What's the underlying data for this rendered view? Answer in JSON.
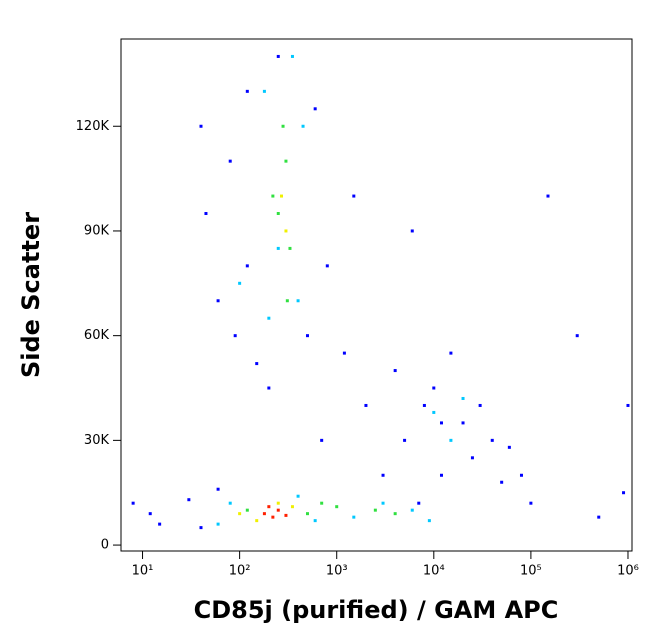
{
  "chart_data": {
    "type": "scatter",
    "x_label": "CD85j (purified) / GAM APC",
    "y_label": "Side Scatter",
    "x_log": true,
    "xlim": [
      6,
      1100000
    ],
    "ylim": [
      -1700,
      145000
    ],
    "xticks": [
      {
        "value": 10,
        "label": "10¹"
      },
      {
        "value": 100,
        "label": "10²"
      },
      {
        "value": 1000,
        "label": "10³"
      },
      {
        "value": 10000,
        "label": "10⁴"
      },
      {
        "value": 100000,
        "label": "10⁵"
      },
      {
        "value": 1000000,
        "label": "10⁶"
      }
    ],
    "yticks": [
      0,
      {
        "value": 30000,
        "label": "30K"
      },
      {
        "value": 60000,
        "label": "60K"
      },
      {
        "value": 90000,
        "label": "90K"
      },
      {
        "value": 120000,
        "label": "120K"
      }
    ],
    "series": [
      {
        "color": "#0000ff",
        "x": [
          8,
          12,
          15,
          30,
          40,
          60,
          45,
          60,
          80,
          90,
          120,
          150,
          200,
          250,
          500,
          600,
          800,
          1500,
          2000,
          3000,
          4000,
          5000,
          6000,
          8000,
          10000,
          12000,
          15000,
          20000,
          25000,
          30000,
          40000,
          50000,
          60000,
          80000,
          100000,
          150000,
          300000,
          500000,
          1000000,
          900000,
          12000,
          7000,
          40,
          120,
          700,
          1200
        ],
        "y": [
          12000,
          9000,
          6000,
          13000,
          5000,
          16000,
          95000,
          70000,
          110000,
          60000,
          130000,
          52000,
          45000,
          140000,
          60000,
          125000,
          80000,
          100000,
          40000,
          20000,
          50000,
          30000,
          90000,
          40000,
          45000,
          20000,
          55000,
          35000,
          25000,
          40000,
          30000,
          18000,
          28000,
          20000,
          12000,
          100000,
          60000,
          8000,
          40000,
          15000,
          35000,
          12000,
          120000,
          80000,
          30000,
          55000
        ]
      },
      {
        "color": "#00c8ff",
        "x": [
          100,
          180,
          200,
          400,
          450,
          350,
          250,
          60,
          80,
          400,
          600,
          1500,
          3000,
          6000,
          9000,
          15000,
          20000,
          10000
        ],
        "y": [
          75000,
          130000,
          65000,
          70000,
          120000,
          140000,
          85000,
          6000,
          12000,
          14000,
          7000,
          8000,
          12000,
          10000,
          7000,
          30000,
          42000,
          38000
        ]
      },
      {
        "color": "#30e040",
        "x": [
          250,
          300,
          220,
          330,
          280,
          310,
          120,
          500,
          1000,
          2500,
          4000,
          700
        ],
        "y": [
          95000,
          110000,
          100000,
          85000,
          120000,
          70000,
          10000,
          9000,
          11000,
          10000,
          9000,
          12000
        ]
      },
      {
        "color": "#f0f000",
        "x": [
          270,
          300,
          150,
          350,
          100,
          250
        ],
        "y": [
          100000,
          90000,
          7000,
          11000,
          9000,
          12000
        ]
      },
      {
        "color": "#ff2000",
        "x": [
          180,
          220,
          250,
          200,
          300
        ],
        "y": [
          9000,
          8000,
          10000,
          11000,
          8500
        ]
      }
    ]
  }
}
